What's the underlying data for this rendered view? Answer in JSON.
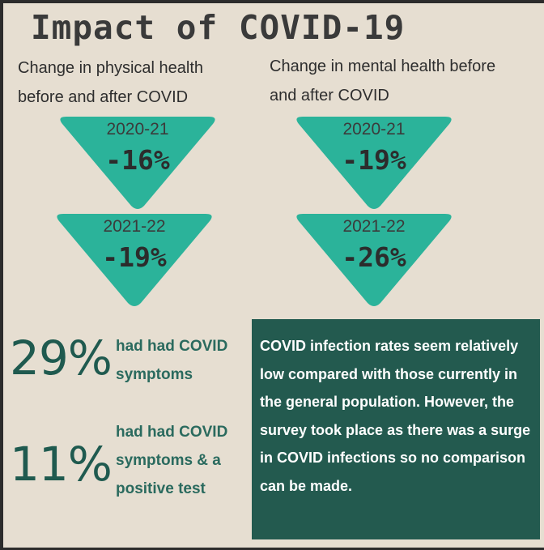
{
  "title": "Impact of COVID-19",
  "physical": {
    "heading": "Change in physical health\nbefore and after COVID",
    "items": [
      {
        "year": "2020-21",
        "value": "-16%"
      },
      {
        "year": "2021-22",
        "value": "-19%"
      }
    ]
  },
  "mental": {
    "heading": "Change in mental health before\nand after COVID",
    "items": [
      {
        "year": "2020-21",
        "value": "-19%"
      },
      {
        "year": "2021-22",
        "value": "-26%"
      }
    ]
  },
  "stats": [
    {
      "number": "29%",
      "label": "had had COVID\nsymptoms"
    },
    {
      "number": "11%",
      "label": "had had COVID\nsymptoms & a\npositive test"
    }
  ],
  "note": "COVID infection rates seem relatively low compared with those currently in the general population. However, the survey took place as there was a surge in COVID infections so no comparison can be made.",
  "colors": {
    "background": "#e6ded1",
    "triangle": "#2bb39a",
    "stat": "#1f5a4f",
    "note_bg": "#235a4f"
  }
}
